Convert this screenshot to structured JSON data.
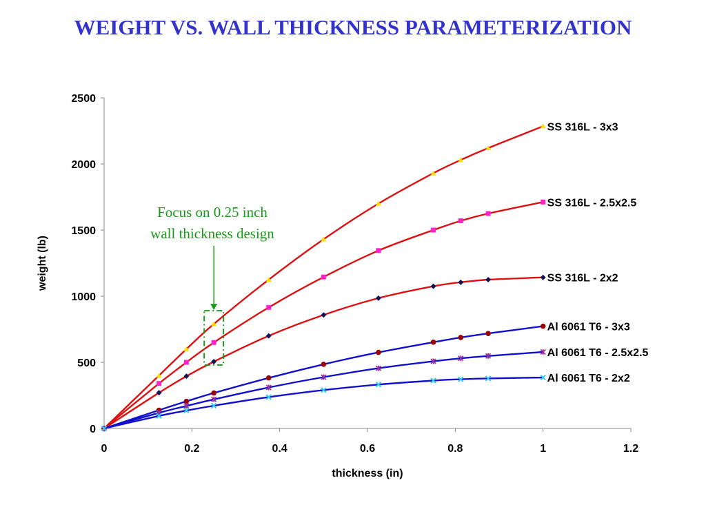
{
  "title": "WEIGHT VS. WALL THICKNESS PARAMETERIZATION",
  "colors": {
    "title": "#3333cc",
    "ss_curve": "#dd1111",
    "al_curve": "#1111cc",
    "annotation": "#1a9a1a"
  },
  "annotation": {
    "line1": "Focus on 0.25 inch",
    "line2": "wall thickness design",
    "target_x": 0.25,
    "target_y_range": [
      480,
      890
    ]
  },
  "chart_data": {
    "type": "line",
    "title": "",
    "xlabel": "thickness (in)",
    "ylabel": "weight (lb)",
    "xlim": [
      0,
      1.2
    ],
    "ylim": [
      0,
      2500
    ],
    "xticks": [
      "0",
      "0.2",
      "0.4",
      "0.6",
      "0.8",
      "1",
      "1.2"
    ],
    "xtick_values": [
      0,
      0.2,
      0.4,
      0.6,
      0.8,
      1,
      1.2
    ],
    "yticks": [
      "0",
      "500",
      "1000",
      "1500",
      "2000",
      "2500"
    ],
    "ytick_values": [
      0,
      500,
      1000,
      1500,
      2000,
      2500
    ],
    "grid": false,
    "legend": "labels at line ends",
    "series": [
      {
        "name": "SS 316L - 3x3",
        "group": "ss",
        "marker": "triangle",
        "marker_color": "#ffdd00",
        "x": [
          0,
          0.125,
          0.1875,
          0.25,
          0.375,
          0.5,
          0.625,
          0.75,
          0.8125,
          0.875,
          1
        ],
        "y": [
          0,
          400,
          600,
          790,
          1125,
          1430,
          1700,
          1930,
          2030,
          2120,
          2285
        ]
      },
      {
        "name": "SS 316L - 2.5x2.5",
        "group": "ss",
        "marker": "square",
        "marker_color": "#ff22cc",
        "x": [
          0,
          0.125,
          0.1875,
          0.25,
          0.375,
          0.5,
          0.625,
          0.75,
          0.8125,
          0.875,
          1
        ],
        "y": [
          0,
          340,
          500,
          650,
          915,
          1145,
          1345,
          1500,
          1570,
          1625,
          1712
        ]
      },
      {
        "name": "SS 316L - 2x2",
        "group": "ss",
        "marker": "diamond",
        "marker_color": "#111155",
        "x": [
          0,
          0.125,
          0.1875,
          0.25,
          0.375,
          0.5,
          0.625,
          0.75,
          0.8125,
          0.875,
          1
        ],
        "y": [
          0,
          270,
          395,
          505,
          700,
          858,
          985,
          1075,
          1105,
          1125,
          1142
        ]
      },
      {
        "name": "Al 6061 T6 - 3x3",
        "group": "al",
        "marker": "circle",
        "marker_color": "#990000",
        "x": [
          0,
          0.125,
          0.1875,
          0.25,
          0.375,
          0.5,
          0.625,
          0.75,
          0.8125,
          0.875,
          1
        ],
        "y": [
          0,
          138,
          205,
          268,
          382,
          485,
          575,
          652,
          688,
          718,
          773
        ]
      },
      {
        "name": "Al 6061 T6 - 2.5x2.5",
        "group": "al",
        "marker": "star",
        "marker_color": "#993399",
        "x": [
          0,
          0.125,
          0.1875,
          0.25,
          0.375,
          0.5,
          0.625,
          0.75,
          0.8125,
          0.875,
          1
        ],
        "y": [
          0,
          118,
          170,
          220,
          310,
          388,
          455,
          508,
          530,
          548,
          578
        ]
      },
      {
        "name": "Al 6061 T6 - 2x2",
        "group": "al",
        "marker": "x",
        "marker_color": "#33ccee",
        "x": [
          0,
          0.125,
          0.1875,
          0.25,
          0.375,
          0.5,
          0.625,
          0.75,
          0.8125,
          0.875,
          1
        ],
        "y": [
          0,
          95,
          135,
          172,
          237,
          290,
          332,
          362,
          372,
          378,
          385
        ]
      }
    ]
  }
}
